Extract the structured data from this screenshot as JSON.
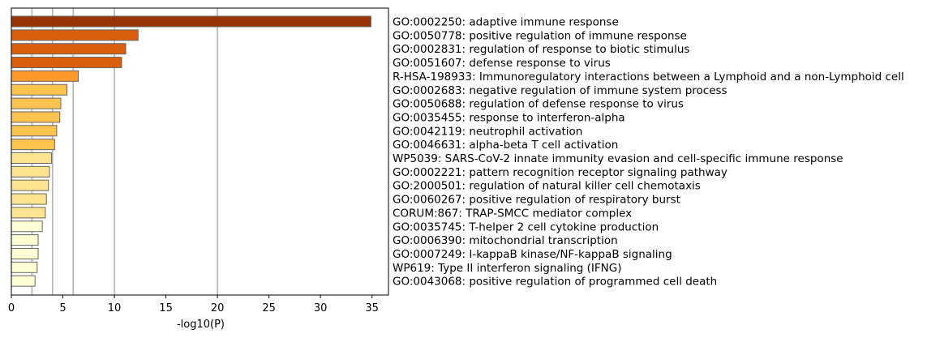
{
  "chart_data": {
    "type": "bar",
    "orientation": "horizontal",
    "title": "",
    "xlabel": "-log10(P)",
    "ylabel": "",
    "xlim": [
      0,
      36.6
    ],
    "x_ticks": [
      "0",
      "5",
      "10",
      "15",
      "20",
      "25",
      "30",
      "35"
    ],
    "vertical_reference_lines": [
      2,
      4,
      6,
      10,
      20
    ],
    "grid": false,
    "legend": "none",
    "categories": [
      "GO:0002250: adaptive immune response",
      "GO:0050778: positive regulation of immune response",
      "GO:0002831: regulation of response to biotic stimulus",
      "GO:0051607: defense response to virus",
      "R-HSA-198933: Immunoregulatory interactions between a Lymphoid and a non-Lymphoid cell",
      "GO:0002683: negative regulation of immune system process",
      "GO:0050688: regulation of defense response to virus",
      "GO:0035455: response to interferon-alpha",
      "GO:0042119: neutrophil activation",
      "GO:0046631: alpha-beta T cell activation",
      "WP5039: SARS-CoV-2 innate immunity evasion and cell-specific immune response",
      "GO:0002221: pattern recognition receptor signaling pathway",
      "GO:2000501: regulation of natural killer cell chemotaxis",
      "GO:0060267: positive regulation of respiratory burst",
      "CORUM:867: TRAP-SMCC mediator complex",
      "GO:0035745: T-helper 2 cell cytokine production",
      "GO:0006390: mitochondrial transcription",
      "GO:0007249: I-kappaB kinase/NF-kappaB signaling",
      "WP619: Type II interferon signaling (IFNG)",
      "GO:0043068: positive regulation of programmed cell death"
    ],
    "values": [
      34.9,
      12.3,
      11.1,
      10.7,
      6.5,
      5.4,
      4.8,
      4.7,
      4.4,
      4.2,
      3.9,
      3.7,
      3.6,
      3.4,
      3.3,
      3.0,
      2.6,
      2.6,
      2.5,
      2.3
    ],
    "bar_colors": [
      "#993404",
      "#d95f0e",
      "#d95f0e",
      "#d95f0e",
      "#fe9929",
      "#fec44f",
      "#fec44f",
      "#fec44f",
      "#fec44f",
      "#fec44f",
      "#fee391",
      "#fee391",
      "#fee391",
      "#fee391",
      "#fee391",
      "#ffffd4",
      "#ffffd4",
      "#ffffd4",
      "#ffffd4",
      "#ffffd4"
    ],
    "bar_edge_color": "#666666",
    "reference_line_color": "#b3b3b3"
  }
}
